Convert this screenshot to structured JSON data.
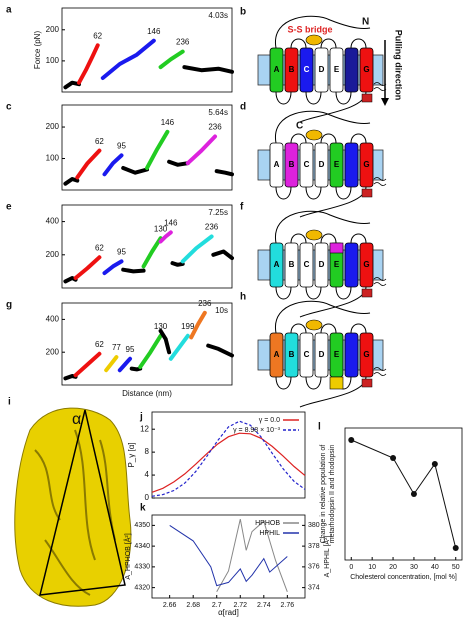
{
  "chart_data": [
    {
      "type": "trace",
      "panel": "a",
      "time": "4.03s",
      "ylabel": "Force (pN)",
      "xlim": [
        0,
        100
      ],
      "ylim": [
        0,
        270
      ],
      "yticks": [
        100,
        200
      ],
      "segments": [
        {
          "color": "#000000",
          "x": [
            2,
            6,
            10
          ],
          "y": [
            15,
            30,
            25
          ]
        },
        {
          "color": "#ee1111",
          "x": [
            10,
            14,
            18,
            21
          ],
          "y": [
            30,
            70,
            115,
            150
          ],
          "label": 62
        },
        {
          "color": "#1a1aee",
          "x": [
            24,
            34,
            44,
            54
          ],
          "y": [
            45,
            90,
            120,
            165
          ],
          "label": 146
        },
        {
          "color": "#22cc22",
          "x": [
            58,
            64,
            71
          ],
          "y": [
            80,
            105,
            130
          ],
          "label": 236
        },
        {
          "color": "#000000",
          "x": [
            72,
            82,
            92,
            100
          ],
          "y": [
            80,
            70,
            75,
            65
          ]
        }
      ]
    },
    {
      "type": "trace",
      "panel": "c",
      "time": "5.64s",
      "xlim": [
        0,
        100
      ],
      "ylim": [
        0,
        270
      ],
      "yticks": [
        100,
        200
      ],
      "segments": [
        {
          "color": "#000000",
          "x": [
            2,
            6,
            9
          ],
          "y": [
            20,
            35,
            30
          ]
        },
        {
          "color": "#ee1111",
          "x": [
            9,
            15,
            22
          ],
          "y": [
            40,
            85,
            125
          ],
          "label": 62
        },
        {
          "color": "#1a1aee",
          "x": [
            25,
            30,
            35
          ],
          "y": [
            50,
            85,
            110
          ],
          "label": 95
        },
        {
          "color": "#000000",
          "x": [
            36,
            43,
            50
          ],
          "y": [
            70,
            55,
            65
          ]
        },
        {
          "color": "#22cc22",
          "x": [
            50,
            56,
            62
          ],
          "y": [
            70,
            130,
            185
          ],
          "label": 146
        },
        {
          "color": "#000000",
          "x": [
            63,
            68,
            74
          ],
          "y": [
            90,
            80,
            85
          ]
        },
        {
          "color": "#dd22dd",
          "x": [
            74,
            82,
            90
          ],
          "y": [
            85,
            125,
            170
          ],
          "label": 236
        },
        {
          "color": "#000000",
          "x": [
            91,
            96,
            100
          ],
          "y": [
            60,
            55,
            50
          ]
        }
      ]
    },
    {
      "type": "trace",
      "panel": "e",
      "time": "7.25s",
      "xlim": [
        0,
        100
      ],
      "ylim": [
        0,
        500
      ],
      "yticks": [
        200,
        400
      ],
      "segments": [
        {
          "color": "#000000",
          "x": [
            2,
            6,
            8
          ],
          "y": [
            40,
            60,
            50
          ]
        },
        {
          "color": "#ee1111",
          "x": [
            8,
            15,
            22
          ],
          "y": [
            60,
            120,
            185
          ],
          "label": 62
        },
        {
          "color": "#1a1aee",
          "x": [
            25,
            30,
            35
          ],
          "y": [
            90,
            130,
            160
          ],
          "label": 95
        },
        {
          "color": "#000000",
          "x": [
            36,
            42,
            48
          ],
          "y": [
            110,
            100,
            105
          ]
        },
        {
          "color": "#22cc22",
          "x": [
            48,
            53,
            58
          ],
          "y": [
            130,
            220,
            300
          ],
          "label": 130
        },
        {
          "color": "#dd22dd",
          "x": [
            58,
            61,
            64
          ],
          "y": [
            280,
            310,
            335
          ],
          "label": 146
        },
        {
          "color": "#000000",
          "x": [
            65,
            68,
            71
          ],
          "y": [
            150,
            140,
            145
          ]
        },
        {
          "color": "#22dddd",
          "x": [
            71,
            79,
            88
          ],
          "y": [
            160,
            240,
            310
          ],
          "label": 236
        },
        {
          "color": "#000000",
          "x": [
            89,
            95,
            100
          ],
          "y": [
            200,
            220,
            180
          ]
        }
      ]
    },
    {
      "type": "trace",
      "panel": "g",
      "time": "10s",
      "xlabel": "Distance (nm)",
      "xlim": [
        0,
        100
      ],
      "ylim": [
        0,
        500
      ],
      "yticks": [
        200,
        400
      ],
      "segments": [
        {
          "color": "#000000",
          "x": [
            2,
            6,
            8
          ],
          "y": [
            40,
            55,
            50
          ]
        },
        {
          "color": "#ee1111",
          "x": [
            8,
            15,
            22
          ],
          "y": [
            60,
            125,
            190
          ],
          "label": 62
        },
        {
          "color": "#eecc00",
          "x": [
            26,
            29,
            32
          ],
          "y": [
            90,
            130,
            170
          ],
          "label": 77
        },
        {
          "color": "#1a1aee",
          "x": [
            34,
            37,
            40
          ],
          "y": [
            90,
            125,
            160
          ],
          "label": 95
        },
        {
          "color": "#000000",
          "x": [
            41,
            44,
            46
          ],
          "y": [
            100,
            95,
            100
          ]
        },
        {
          "color": "#22cc22",
          "x": [
            46,
            52,
            58
          ],
          "y": [
            110,
            200,
            300
          ],
          "label": 130
        },
        {
          "color": "#000000",
          "x": [
            58,
            61,
            63
          ],
          "y": [
            330,
            280,
            200
          ]
        },
        {
          "color": "#22dddd",
          "x": [
            64,
            69,
            74
          ],
          "y": [
            160,
            230,
            300
          ],
          "label": 199
        },
        {
          "color": "#ee7722",
          "x": [
            76,
            80,
            84
          ],
          "y": [
            290,
            370,
            440
          ],
          "label": 236
        },
        {
          "color": "#000000",
          "x": [
            86,
            92,
            100
          ],
          "y": [
            240,
            220,
            180
          ]
        }
      ]
    },
    {
      "type": "line",
      "panel": "j",
      "ylabel": "P_γ [α]",
      "xlim": [
        2.64,
        2.78
      ],
      "ylim": [
        0,
        15
      ],
      "yticks": [
        0,
        4,
        8,
        12
      ],
      "legend": "top-right",
      "x": [
        2.64,
        2.65,
        2.66,
        2.67,
        2.68,
        2.69,
        2.7,
        2.71,
        2.72,
        2.73,
        2.74,
        2.75,
        2.76,
        2.77,
        2.78
      ],
      "series": [
        {
          "name": "γ = 0.0",
          "color": "#dd2222",
          "values": [
            1.0,
            1.7,
            2.8,
            4.2,
            5.9,
            7.7,
            9.4,
            10.7,
            11.3,
            11.2,
            10.4,
            9.0,
            7.3,
            5.5,
            3.9
          ]
        },
        {
          "name": "γ = 8.98 × 10⁻³",
          "color": "#2222cc",
          "dashed": true,
          "values": [
            0.3,
            0.6,
            1.3,
            2.6,
            4.6,
            7.2,
            10.0,
            12.4,
            13.4,
            12.7,
            10.6,
            7.8,
            5.1,
            2.9,
            1.5
          ]
        }
      ]
    },
    {
      "type": "dual",
      "panel": "k",
      "xlabel": "α[rad]",
      "ylabel": "A_HPHOB [Å²]",
      "y2label": "A_HPHIL [Å²]",
      "legend": "top-right",
      "xlim": [
        2.645,
        2.775
      ],
      "xticks": [
        2.66,
        2.68,
        2.7,
        2.72,
        2.74,
        2.76
      ],
      "ylim": [
        4315,
        4355
      ],
      "yticks": [
        4320,
        4330,
        4340,
        4350
      ],
      "y2lim": [
        373,
        381
      ],
      "y2ticks": [
        374,
        376,
        378,
        380
      ],
      "series": [
        {
          "name": "HPHOB",
          "color": "#888888",
          "x": [
            2.7,
            2.71,
            2.72,
            2.725,
            2.73,
            2.74,
            2.75,
            2.76
          ],
          "values": [
            4318,
            4328,
            4353,
            4338,
            4347,
            4352,
            4333,
            4318
          ]
        },
        {
          "name": "HPHIL",
          "color": "#2233aa",
          "axis": "y2",
          "x": [
            2.66,
            2.68,
            2.695,
            2.7,
            2.71,
            2.72,
            2.725,
            2.73,
            2.74,
            2.745,
            2.76
          ],
          "values": [
            380,
            378.5,
            376,
            374.2,
            374.5,
            375.8,
            374.6,
            375.2,
            376.8,
            375.5,
            377
          ]
        }
      ]
    },
    {
      "type": "scatter",
      "panel": "l",
      "xlabel": "Cholesterol concentration, [mol %]",
      "ylabel": [
        "Change in relative population of",
        "metarhodopsin II and rhodopsin"
      ],
      "xlim": [
        -3,
        53
      ],
      "xticks": [
        0,
        10,
        20,
        30,
        40,
        50
      ],
      "ylim": [
        0,
        1.1
      ],
      "series": [
        {
          "color": "#111111",
          "x": [
            0,
            20,
            30,
            40,
            50
          ],
          "values": [
            1.0,
            0.85,
            0.55,
            0.8,
            0.1
          ]
        }
      ]
    }
  ],
  "diagrams": [
    {
      "panel": "b",
      "ss_bridge": "S-S bridge",
      "n_term": "N",
      "c_term": "C",
      "pulling": "Pulling direction",
      "helices": [
        {
          "label": "A",
          "color": "#22cc22"
        },
        {
          "label": "B",
          "color": "#ee1111"
        },
        {
          "label": "C",
          "color": "#1a1aee"
        },
        {
          "label": "D",
          "color": "#ffffff"
        },
        {
          "label": "E",
          "color": "#ffffff"
        },
        {
          "color": "#1a1a99"
        },
        {
          "label": "G",
          "color": "#ee1111"
        }
      ]
    },
    {
      "panel": "d",
      "helices": [
        {
          "label": "A",
          "color": "#ffffff"
        },
        {
          "label": "B",
          "color": "#dd22dd"
        },
        {
          "label": "C",
          "color": "#ffffff"
        },
        {
          "label": "D",
          "color": "#ffffff"
        },
        {
          "label": "E",
          "color": "#22cc22"
        },
        {
          "color": "#1a1aee"
        },
        {
          "label": "G",
          "color": "#ee1111"
        }
      ]
    },
    {
      "panel": "f",
      "patch": "#dd22dd",
      "helices": [
        {
          "label": "A",
          "color": "#22dddd"
        },
        {
          "label": "B",
          "color": "#ffffff"
        },
        {
          "label": "C",
          "color": "#ffffff"
        },
        {
          "label": "D",
          "color": "#ffffff"
        },
        {
          "label": "E",
          "color": "#22cc22"
        },
        {
          "color": "#1a1aee"
        },
        {
          "label": "G",
          "color": "#ee1111"
        }
      ]
    },
    {
      "panel": "h",
      "patch": "#eecc00",
      "helices": [
        {
          "label": "A",
          "color": "#ee7722"
        },
        {
          "label": "B",
          "color": "#22dddd"
        },
        {
          "label": "C",
          "color": "#ffffff"
        },
        {
          "label": "D",
          "color": "#ffffff"
        },
        {
          "label": "E",
          "color": "#22cc22"
        },
        {
          "color": "#1a1aee"
        },
        {
          "label": "G",
          "color": "#ee1111"
        }
      ]
    }
  ],
  "structure": {
    "panel": "i",
    "angle": "α"
  }
}
